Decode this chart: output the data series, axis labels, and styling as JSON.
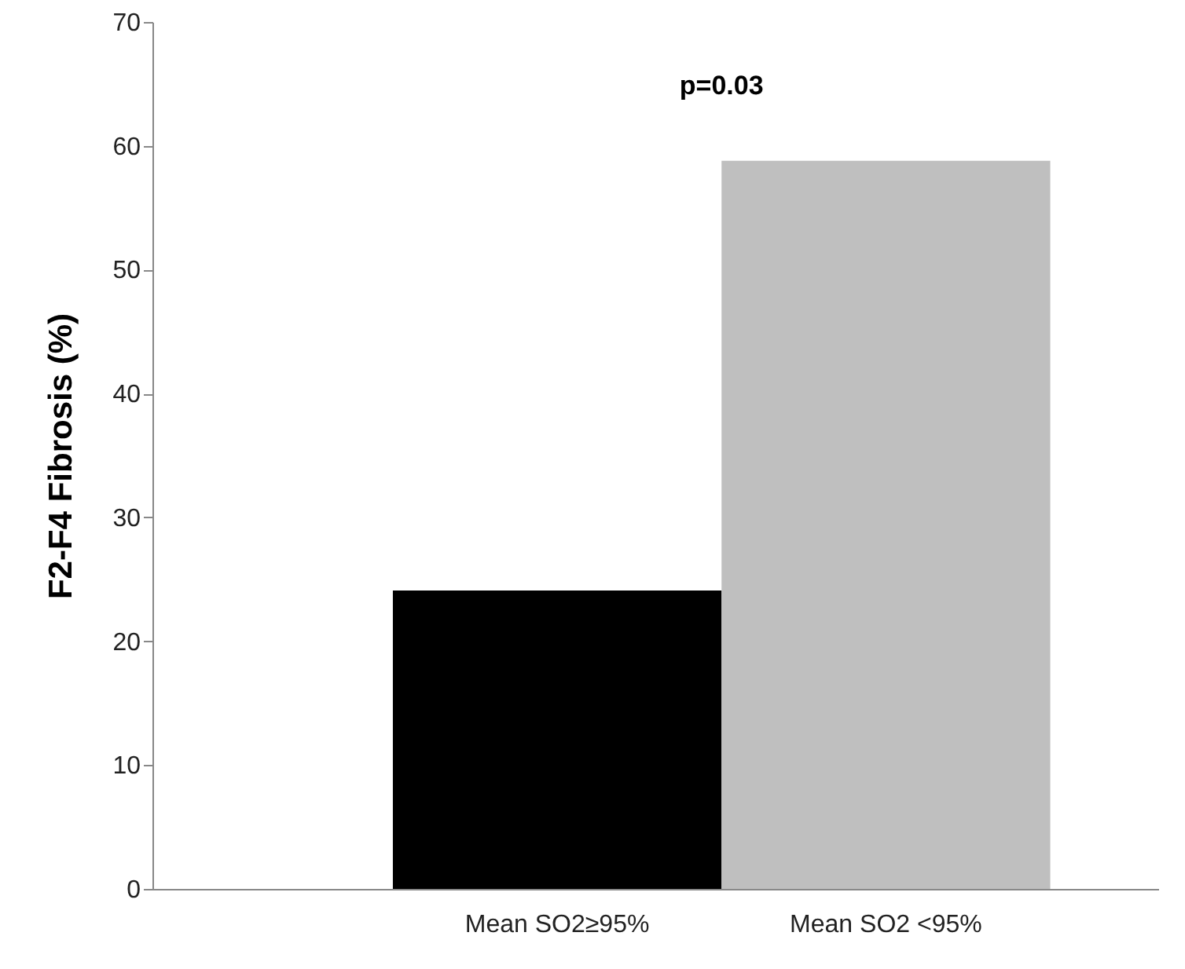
{
  "chart_data": {
    "type": "bar",
    "ylabel": "F2-F4 Fibrosis (%)",
    "categories": [
      "Mean  SO2≥95%",
      "Mean SO2 <95%"
    ],
    "values": [
      24.1,
      58.8
    ],
    "colors": [
      "#000000",
      "#bfbfbf"
    ],
    "ylim": [
      0,
      70
    ],
    "yticks": [
      0,
      10,
      20,
      30,
      40,
      50,
      60,
      70
    ],
    "grid": false,
    "annotations": [
      "p=0.03"
    ]
  }
}
